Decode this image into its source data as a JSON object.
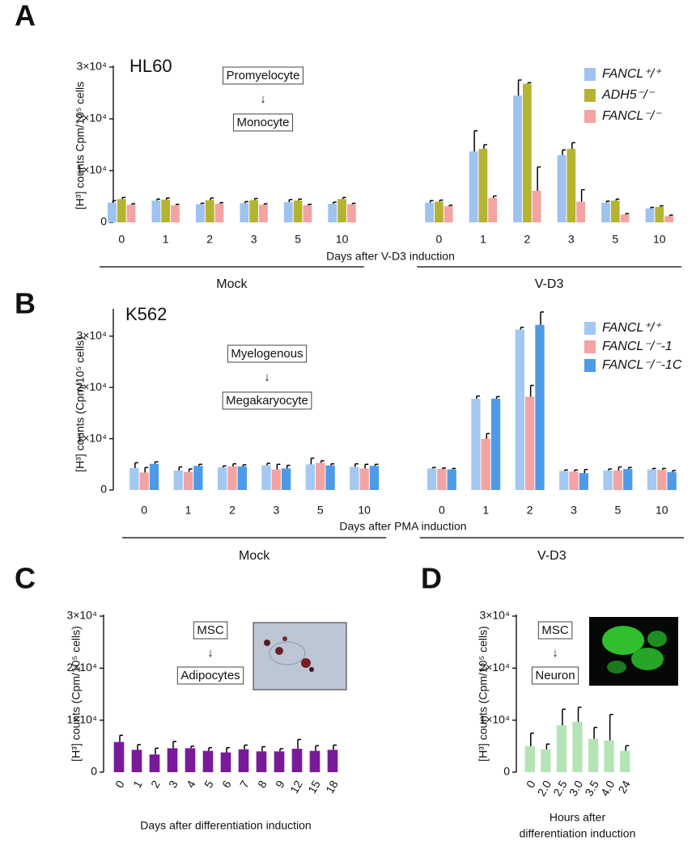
{
  "chart_data": [
    {
      "type": "bar",
      "panel_label": "A",
      "cell_line": "HL60",
      "annotations": [
        "Promyelocyte",
        "↓",
        "Monocyte"
      ],
      "ylabel": "[H³] counts Cpm/10⁵ cells",
      "xlabel": "Days after V-D3 induction",
      "categories": [
        "0",
        "1",
        "2",
        "3",
        "5",
        "10",
        "0",
        "1",
        "2",
        "3",
        "5",
        "10"
      ],
      "group_labels": [
        "Mock",
        "V-D3"
      ],
      "ylim": [
        0,
        30000
      ],
      "yticks": [
        0,
        {
          "value": 10000,
          "label": "1×10⁴"
        },
        {
          "value": 20000,
          "label": "2×10⁴"
        },
        {
          "value": 30000,
          "label": "3×10⁴"
        }
      ],
      "series": [
        {
          "name": "FANCL⁺/⁺",
          "color": "#9ec3f0",
          "values": [
            3800,
            4200,
            3500,
            3700,
            3900,
            3600,
            3800,
            13700,
            24500,
            13000,
            3800,
            2700
          ],
          "errors": [
            400,
            300,
            200,
            300,
            500,
            300,
            400,
            4000,
            3000,
            1000,
            300,
            200
          ]
        },
        {
          "name": "ADH5⁻/⁻",
          "color": "#b5b432",
          "values": [
            4500,
            4400,
            4300,
            4300,
            4200,
            4500,
            4000,
            14200,
            26800,
            14200,
            4200,
            3000
          ],
          "errors": [
            300,
            300,
            400,
            300,
            300,
            300,
            300,
            800,
            200,
            1200,
            300,
            200
          ]
        },
        {
          "name": "FANCL⁻/⁻",
          "color": "#f4a3a3",
          "values": [
            3400,
            3300,
            3600,
            3400,
            3300,
            3500,
            3100,
            4700,
            6100,
            4000,
            1500,
            1200
          ],
          "errors": [
            200,
            200,
            200,
            200,
            200,
            200,
            200,
            400,
            4600,
            2300,
            200,
            200
          ]
        }
      ]
    },
    {
      "type": "bar",
      "panel_label": "B",
      "cell_line": "K562",
      "annotations": [
        "Myelogenous",
        "↓",
        "Megakaryocyte"
      ],
      "ylabel": "[H³] counts (Cpm/10⁵ cells)",
      "xlabel": "Days after PMA induction",
      "categories": [
        "0",
        "1",
        "2",
        "3",
        "5",
        "10",
        "0",
        "1",
        "2",
        "3",
        "5",
        "10"
      ],
      "group_labels": [
        "Mock",
        "V-D3"
      ],
      "ylim": [
        0,
        35000
      ],
      "yticks": [
        0,
        {
          "value": 10000,
          "label": "1×10⁴"
        },
        {
          "value": 20000,
          "label": "2×10⁴"
        },
        {
          "value": 30000,
          "label": "3×10⁴"
        }
      ],
      "series": [
        {
          "name": "FANCL⁺/⁺",
          "color": "#a3c8f2",
          "values": [
            4300,
            3800,
            4400,
            4800,
            5000,
            4500,
            4200,
            17800,
            31300,
            3700,
            3800,
            4000
          ],
          "errors": [
            1000,
            700,
            300,
            400,
            1200,
            600,
            200,
            500,
            400,
            200,
            300,
            200
          ]
        },
        {
          "name": "FANCL⁻/⁻-1",
          "color": "#f4a3a3",
          "values": [
            3400,
            3500,
            4600,
            4000,
            5300,
            4200,
            4100,
            10000,
            18200,
            3600,
            3800,
            3900
          ],
          "errors": [
            1000,
            600,
            500,
            1000,
            400,
            800,
            200,
            1000,
            2200,
            300,
            700,
            300
          ]
        },
        {
          "name": "FANCL⁻/⁻-1C",
          "color": "#4d9be8",
          "values": [
            5100,
            4700,
            4600,
            4200,
            4800,
            4700,
            4000,
            17800,
            32200,
            3300,
            4100,
            3500
          ],
          "errors": [
            400,
            300,
            300,
            600,
            300,
            300,
            200,
            400,
            2500,
            700,
            300,
            300
          ]
        }
      ]
    },
    {
      "type": "bar",
      "panel_label": "C",
      "annotations": [
        "MSC",
        "↓",
        "Adipocytes"
      ],
      "ylabel": "[H³] counts (Cpm/10⁵ cells)",
      "xlabel": "Days after differentiation induction",
      "categories": [
        "0",
        "1",
        "2",
        "3",
        "4",
        "5",
        "6",
        "7",
        "8",
        "9",
        "12",
        "15",
        "18"
      ],
      "ylim": [
        0,
        30000
      ],
      "yticks": [
        0,
        {
          "value": 10000,
          "label": "1×10⁴"
        },
        {
          "value": 20000,
          "label": "2×10⁴"
        },
        {
          "value": 30000,
          "label": "3×10⁴"
        }
      ],
      "series": [
        {
          "color": "#7a1a9a",
          "values": [
            5800,
            4300,
            3400,
            4600,
            4600,
            4100,
            3800,
            4400,
            4000,
            4000,
            4500,
            4100,
            4300
          ],
          "errors": [
            1300,
            1000,
            1200,
            1300,
            400,
            600,
            900,
            800,
            900,
            500,
            1800,
            1000,
            900
          ]
        }
      ]
    },
    {
      "type": "bar",
      "panel_label": "D",
      "annotations": [
        "MSC",
        "↓",
        "Neuron"
      ],
      "ylabel": "[H³] counts (Cpm/10⁵ cells)",
      "xlabel": [
        "Hours after",
        "differentiation induction"
      ],
      "categories": [
        "0",
        "2.0",
        "2.5",
        "3.0",
        "3.5",
        "4.0",
        "24"
      ],
      "ylim": [
        0,
        30000
      ],
      "yticks": [
        0,
        {
          "value": 10000,
          "label": "1×10⁴"
        },
        {
          "value": 20000,
          "label": "2×10⁴"
        },
        {
          "value": 30000,
          "label": "3×10⁴"
        }
      ],
      "series": [
        {
          "color": "#b5e3b5",
          "values": [
            5000,
            4400,
            9000,
            9700,
            6400,
            6100,
            4100
          ],
          "errors": [
            2500,
            1000,
            3100,
            2800,
            2200,
            5000,
            1000
          ]
        }
      ]
    }
  ]
}
